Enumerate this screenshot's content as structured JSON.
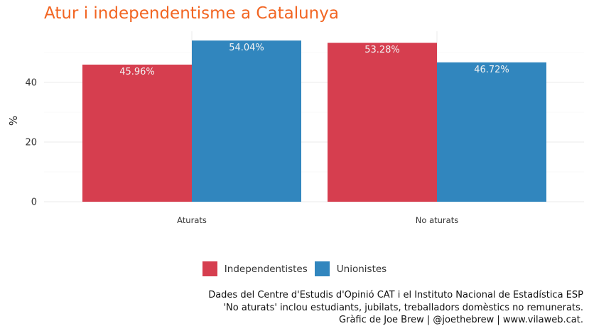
{
  "chart_data": {
    "type": "bar",
    "title": "Atur i independentisme a Catalunya",
    "ylabel": "%",
    "xlabel": "",
    "categories": [
      "Aturats",
      "No aturats"
    ],
    "series": [
      {
        "name": "Independentistes",
        "color": "#d63e4f",
        "values": [
          45.96,
          53.28
        ],
        "labels": [
          "45.96%",
          "53.28%"
        ]
      },
      {
        "name": "Unionistes",
        "color": "#3186be",
        "values": [
          54.04,
          46.72
        ],
        "labels": [
          "54.04%",
          "46.72%"
        ]
      }
    ],
    "ylim": [
      0,
      56.7
    ],
    "yticks": [
      0,
      20,
      40
    ],
    "grid": true,
    "legend_position": "bottom"
  },
  "caption": {
    "line1": "Dades del Centre d'Estudis d'Opinió CAT i el Instituto Nacional de Estadística ESP",
    "line2": "'No aturats' inclou estudiants, jubilats, treballadors domèstics no remunerats.",
    "line3": "Gràfic de Joe Brew | @joethebrew | www.vilaweb.cat."
  }
}
